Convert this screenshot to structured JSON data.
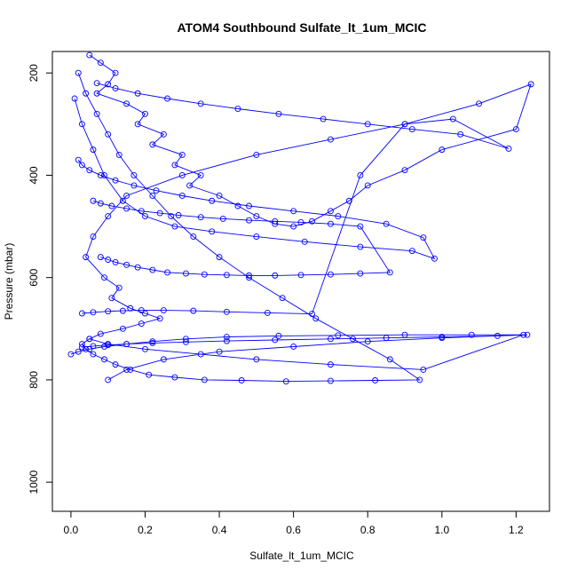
{
  "chart_data": {
    "type": "line",
    "title": "ATOM4 Southbound Sulfate_lt_1um_MCIC",
    "xlabel": "Sulfate_lt_1um_MCIC",
    "ylabel": "Pressure (mbar)",
    "xlim": [
      -0.05,
      1.29
    ],
    "ylim": [
      1057,
      158
    ],
    "y_reversed": true,
    "grid": false,
    "line_color": "#0000ff",
    "marker": "open-circle",
    "x_ticks": [
      "0.0",
      "0.2",
      "0.4",
      "0.6",
      "0.8",
      "1.0",
      "1.2"
    ],
    "x_tick_values": [
      0.0,
      0.2,
      0.4,
      0.6,
      0.8,
      1.0,
      1.2
    ],
    "y_ticks": [
      "200",
      "400",
      "600",
      "800",
      "1000"
    ],
    "y_tick_values": [
      200,
      400,
      600,
      800,
      1000
    ],
    "series": [
      {
        "x": [
          0.05,
          0.08,
          0.12,
          0.1,
          0.07,
          0.15,
          0.2,
          0.18,
          0.25,
          0.22,
          0.3,
          0.28,
          0.35,
          0.32,
          0.4,
          0.45,
          0.5,
          0.55,
          0.6,
          0.65,
          0.7,
          0.75,
          0.8,
          0.9,
          1.0,
          1.2,
          1.24,
          1.1,
          0.9,
          0.7,
          0.5,
          0.3,
          0.15,
          0.1,
          0.06,
          0.04,
          0.09,
          0.13,
          0.11,
          0.16,
          0.2,
          0.24,
          0.19,
          0.14,
          0.08,
          0.05,
          0.1,
          0.2,
          0.35,
          0.5,
          0.7,
          0.95,
          1.22,
          1.0,
          0.8,
          0.6,
          0.4,
          0.25,
          0.15,
          0.1
        ],
        "y": [
          165,
          180,
          200,
          222,
          240,
          260,
          280,
          300,
          320,
          340,
          360,
          380,
          400,
          420,
          440,
          460,
          480,
          495,
          500,
          490,
          470,
          450,
          420,
          390,
          350,
          310,
          222,
          260,
          300,
          330,
          360,
          400,
          440,
          480,
          520,
          560,
          600,
          620,
          640,
          660,
          670,
          680,
          690,
          700,
          710,
          720,
          730,
          740,
          750,
          760,
          770,
          780,
          712,
          718,
          725,
          735,
          745,
          760,
          780,
          800
        ]
      },
      {
        "x": [
          0.02,
          0.04,
          0.07,
          0.1,
          0.13,
          0.17,
          0.22,
          0.27,
          0.33,
          0.4,
          0.48,
          0.57,
          0.66,
          0.76,
          0.86,
          0.94,
          0.82,
          0.7,
          0.58,
          0.46,
          0.36,
          0.28,
          0.21,
          0.16,
          0.12,
          0.09,
          0.06,
          0.04,
          0.03,
          0.05
        ],
        "y": [
          200,
          240,
          280,
          320,
          360,
          400,
          440,
          480,
          520,
          560,
          600,
          640,
          680,
          720,
          760,
          800,
          801,
          802,
          803,
          801,
          800,
          795,
          790,
          780,
          770,
          760,
          750,
          740,
          730,
          720
        ]
      },
      {
        "x": [
          0.01,
          0.03,
          0.06,
          0.09,
          0.14,
          0.2,
          0.28,
          0.38,
          0.5,
          0.63,
          0.78,
          0.92,
          0.98,
          0.95,
          0.85,
          0.72,
          0.6,
          0.48,
          0.38,
          0.3,
          0.23,
          0.17,
          0.12,
          0.08,
          0.05,
          0.03,
          0.02
        ],
        "y": [
          250,
          300,
          350,
          400,
          450,
          480,
          500,
          510,
          520,
          530,
          540,
          548,
          563,
          522,
          495,
          480,
          470,
          460,
          450,
          440,
          430,
          420,
          410,
          400,
          390,
          380,
          370
        ]
      },
      {
        "x": [
          0.0,
          0.02,
          0.05,
          0.09,
          0.15,
          0.22,
          0.31,
          0.42,
          0.56,
          0.72,
          0.9,
          1.08,
          1.23,
          1.15,
          1.0,
          0.85,
          0.7,
          0.55,
          0.42,
          0.31,
          0.22,
          0.15,
          0.1,
          0.06,
          0.03
        ],
        "y": [
          750,
          745,
          740,
          735,
          730,
          725,
          720,
          716,
          714,
          713,
          712,
          712,
          712,
          714,
          716,
          718,
          720,
          722,
          724,
          726,
          728,
          730,
          732,
          734,
          736
        ]
      },
      {
        "x": [
          0.03,
          0.06,
          0.1,
          0.14,
          0.19,
          0.25,
          0.33,
          0.42,
          0.53,
          0.65,
          0.78,
          0.9,
          1.03,
          1.18,
          1.05,
          0.92,
          0.8,
          0.68,
          0.56,
          0.45,
          0.35,
          0.26,
          0.18,
          0.12,
          0.07
        ],
        "y": [
          670,
          668,
          666,
          665,
          664,
          664,
          665,
          667,
          669,
          671,
          400,
          300,
          290,
          348,
          320,
          310,
          300,
          290,
          280,
          270,
          260,
          250,
          240,
          230,
          220
        ]
      },
      {
        "x": [
          0.08,
          0.1,
          0.12,
          0.15,
          0.18,
          0.22,
          0.26,
          0.31,
          0.36,
          0.42,
          0.48,
          0.55,
          0.62,
          0.7,
          0.78,
          0.86,
          0.78,
          0.7,
          0.62,
          0.55,
          0.48,
          0.41,
          0.35,
          0.29,
          0.24,
          0.19,
          0.15,
          0.11,
          0.08,
          0.06
        ],
        "y": [
          560,
          565,
          570,
          575,
          580,
          585,
          590,
          592,
          594,
          595,
          596,
          596,
          595,
          594,
          592,
          590,
          500,
          495,
          492,
          490,
          488,
          485,
          482,
          478,
          474,
          470,
          465,
          460,
          455,
          450
        ]
      }
    ]
  }
}
